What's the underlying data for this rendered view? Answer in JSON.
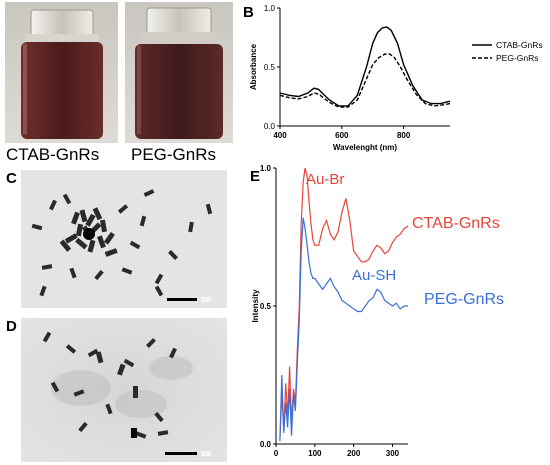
{
  "panels": {
    "A": {
      "letter": "A",
      "vials": [
        {
          "label": "CTAB-GnRs",
          "liquid_color": "#5a2222"
        },
        {
          "label": "PEG-GnRs",
          "liquid_color": "#4a2424"
        }
      ]
    },
    "B": {
      "letter": "B",
      "legend": [
        "CTAB-GnRs",
        "PEG-GnRs"
      ]
    },
    "C": {
      "letter": "C"
    },
    "D": {
      "letter": "D"
    },
    "E": {
      "letter": "E",
      "annotations": {
        "ctab_peak": "Au-Br",
        "peg_peak": "Au-SH",
        "ctab_series": "CTAB-GnRs",
        "peg_series": "PEG-GnRs"
      }
    }
  },
  "chart_data": [
    {
      "type": "line",
      "panel": "B",
      "title": "",
      "xlabel": "Wavelenght (nm)",
      "ylabel": "Absorbance",
      "xlim": [
        400,
        950
      ],
      "ylim": [
        0,
        1.0
      ],
      "x_ticks": [
        400,
        600,
        800
      ],
      "y_ticks": [
        0.0,
        0.5,
        1.0
      ],
      "y_tick_labels": [
        "0.0",
        "0.5",
        "1.0"
      ],
      "legend_position": "right",
      "series": [
        {
          "name": "CTAB-GnRs",
          "style": "solid",
          "color": "#000000",
          "x": [
            400,
            430,
            460,
            490,
            510,
            525,
            540,
            560,
            590,
            620,
            650,
            680,
            700,
            715,
            730,
            745,
            760,
            780,
            800,
            830,
            860,
            890,
            920,
            950
          ],
          "y": [
            0.28,
            0.26,
            0.25,
            0.28,
            0.32,
            0.31,
            0.27,
            0.22,
            0.17,
            0.17,
            0.26,
            0.5,
            0.7,
            0.79,
            0.83,
            0.84,
            0.81,
            0.7,
            0.52,
            0.34,
            0.22,
            0.19,
            0.19,
            0.21
          ]
        },
        {
          "name": "PEG-GnRs",
          "style": "dashed",
          "color": "#000000",
          "x": [
            400,
            430,
            460,
            490,
            510,
            525,
            540,
            560,
            590,
            620,
            650,
            680,
            700,
            720,
            740,
            755,
            770,
            790,
            810,
            840,
            870,
            900,
            930,
            950
          ],
          "y": [
            0.26,
            0.24,
            0.23,
            0.25,
            0.28,
            0.27,
            0.24,
            0.2,
            0.16,
            0.16,
            0.22,
            0.4,
            0.52,
            0.58,
            0.61,
            0.61,
            0.58,
            0.5,
            0.4,
            0.27,
            0.19,
            0.17,
            0.18,
            0.19
          ]
        }
      ]
    },
    {
      "type": "line",
      "panel": "E",
      "title": "",
      "xlabel": "",
      "ylabel": "Intensity",
      "xlim": [
        0,
        340
      ],
      "ylim": [
        0,
        1.0
      ],
      "x_ticks": [
        0,
        100,
        200,
        300
      ],
      "y_ticks": [
        0.0,
        0.5,
        1.0
      ],
      "y_tick_labels": [
        "0.0",
        "0.5",
        "1.0"
      ],
      "series": [
        {
          "name": "CTAB-GnRs",
          "color": "#e8453a",
          "x": [
            10,
            15,
            20,
            25,
            30,
            35,
            40,
            45,
            50,
            55,
            60,
            65,
            70,
            75,
            80,
            85,
            90,
            95,
            100,
            110,
            120,
            130,
            140,
            150,
            160,
            170,
            180,
            190,
            200,
            210,
            220,
            230,
            240,
            250,
            260,
            270,
            280,
            290,
            300,
            310,
            320,
            330,
            340
          ],
          "y": [
            0.02,
            0.18,
            0.05,
            0.22,
            0.1,
            0.28,
            0.08,
            0.2,
            0.15,
            0.35,
            0.5,
            0.8,
            0.95,
            1.0,
            0.97,
            0.88,
            0.8,
            0.74,
            0.72,
            0.72,
            0.78,
            0.81,
            0.76,
            0.74,
            0.77,
            0.84,
            0.89,
            0.81,
            0.7,
            0.68,
            0.66,
            0.66,
            0.67,
            0.7,
            0.72,
            0.71,
            0.69,
            0.7,
            0.73,
            0.75,
            0.76,
            0.78,
            0.79
          ]
        },
        {
          "name": "PEG-GnRs",
          "color": "#3a6fd8",
          "x": [
            10,
            15,
            20,
            25,
            30,
            35,
            40,
            45,
            50,
            55,
            60,
            65,
            70,
            75,
            80,
            85,
            90,
            95,
            100,
            110,
            120,
            130,
            140,
            150,
            160,
            170,
            180,
            190,
            200,
            210,
            220,
            230,
            240,
            250,
            260,
            270,
            280,
            290,
            300,
            310,
            320,
            330,
            340
          ],
          "y": [
            0.01,
            0.25,
            0.04,
            0.15,
            0.06,
            0.2,
            0.03,
            0.18,
            0.12,
            0.3,
            0.45,
            0.7,
            0.82,
            0.78,
            0.72,
            0.66,
            0.62,
            0.6,
            0.6,
            0.58,
            0.56,
            0.58,
            0.6,
            0.57,
            0.55,
            0.52,
            0.51,
            0.5,
            0.49,
            0.48,
            0.48,
            0.5,
            0.52,
            0.53,
            0.56,
            0.55,
            0.52,
            0.51,
            0.5,
            0.51,
            0.49,
            0.5,
            0.5
          ]
        }
      ]
    }
  ]
}
